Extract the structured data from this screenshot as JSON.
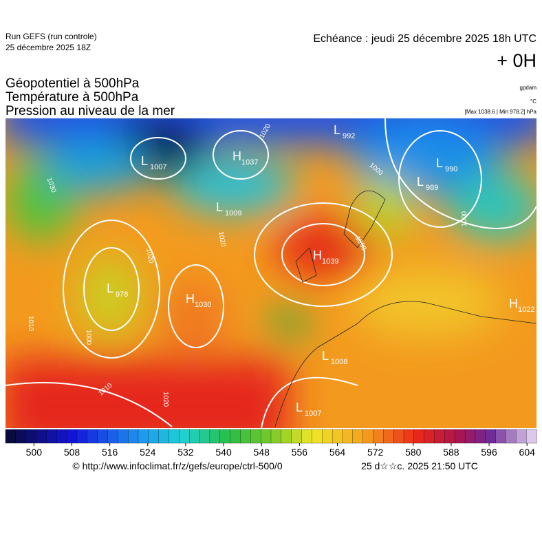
{
  "header": {
    "run": "Run GEFS (run controle)",
    "run_date": "25 décembre 2025 18Z",
    "valid_time": "Echéance : jeudi 25 décembre 2025 18h UTC",
    "lead": "+ 0H"
  },
  "fields": {
    "lines": [
      "Géopotentiel à 500hPa",
      "Température à 500hPa",
      "Pression au niveau de la mer"
    ],
    "units": [
      "gpdam",
      "°C"
    ],
    "extremes": "[Max 1038.6 | Min 978.2] hPa"
  },
  "pressure_centers": [
    {
      "letter": "L",
      "value": 1007
    },
    {
      "letter": "H",
      "value": 1037
    },
    {
      "letter": "L",
      "value": 992
    },
    {
      "letter": "L",
      "value": 990
    },
    {
      "letter": "L",
      "value": 989
    },
    {
      "letter": "L",
      "value": 1009
    },
    {
      "letter": "L",
      "value": 978
    },
    {
      "letter": "H",
      "value": 1030
    },
    {
      "letter": "H",
      "value": 1039
    },
    {
      "letter": "L",
      "value": 1007
    },
    {
      "letter": "L",
      "value": 1008
    },
    {
      "letter": "H",
      "value": 1022
    }
  ],
  "isobar_labels": [
    1020,
    1030,
    1020,
    1010,
    1000,
    1010,
    1020,
    1000,
    1000,
    1030,
    1020
  ],
  "colorbar": {
    "lim": [
      494,
      606
    ],
    "ticks": [
      500,
      508,
      516,
      524,
      532,
      540,
      548,
      556,
      564,
      572,
      580,
      588,
      596,
      604
    ]
  },
  "footer": {
    "source": "© http://www.infoclimat.fr/z/gefs/europe/ctrl-500/0",
    "timestamp": "25 d☆☆c. 2025 21:50 UTC"
  }
}
